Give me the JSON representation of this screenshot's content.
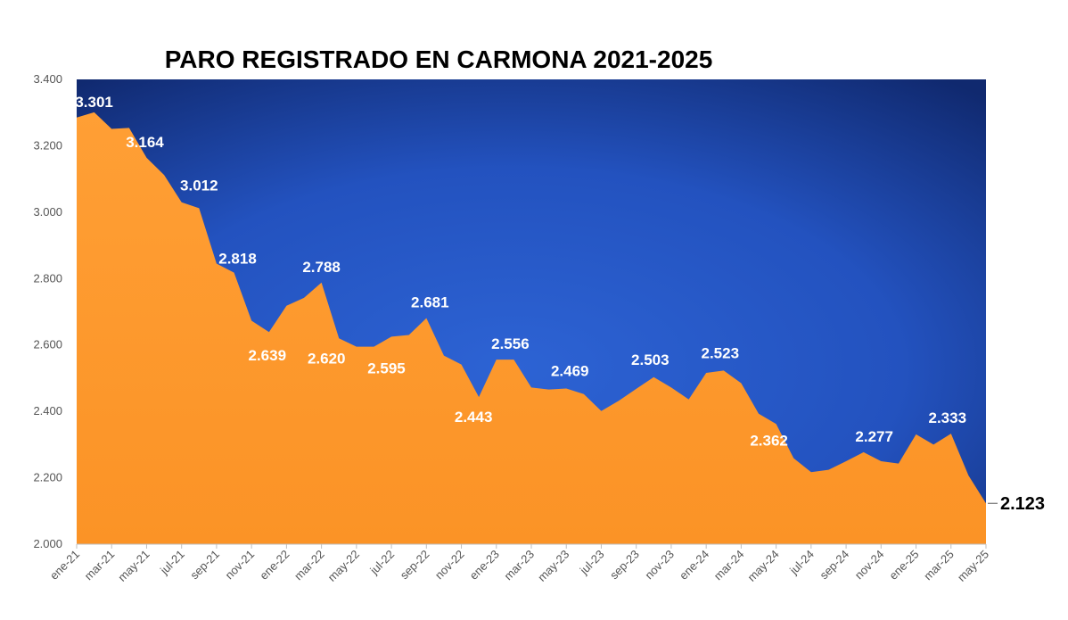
{
  "chart_data": {
    "type": "area",
    "title": "PARO REGISTRADO EN CARMONA 2021-2025",
    "xlabel": "",
    "ylabel": "",
    "ylim": [
      2000,
      3400
    ],
    "yticks": [
      "2.000",
      "2.200",
      "2.400",
      "2.600",
      "2.800",
      "3.000",
      "3.200",
      "3.400"
    ],
    "ytick_values": [
      2000,
      2200,
      2400,
      2600,
      2800,
      3000,
      3200,
      3400
    ],
    "grid": false,
    "legend": "none",
    "x": [
      "ene-21",
      "feb-21",
      "mar-21",
      "abr-21",
      "may-21",
      "jun-21",
      "jul-21",
      "ago-21",
      "sep-21",
      "oct-21",
      "nov-21",
      "dic-21",
      "ene-22",
      "feb-22",
      "mar-22",
      "abr-22",
      "may-22",
      "jun-22",
      "jul-22",
      "ago-22",
      "sep-22",
      "oct-22",
      "nov-22",
      "dic-22",
      "ene-23",
      "feb-23",
      "mar-23",
      "abr-23",
      "may-23",
      "jun-23",
      "jul-23",
      "ago-23",
      "sep-23",
      "oct-23",
      "nov-23",
      "dic-23",
      "ene-24",
      "feb-24",
      "mar-24",
      "abr-24",
      "may-24",
      "jun-24",
      "jul-24",
      "ago-24",
      "sep-24",
      "oct-24",
      "nov-24",
      "dic-24",
      "ene-25",
      "feb-25",
      "mar-25",
      "abr-25",
      "may-25"
    ],
    "x_tick_labels": [
      "ene-21",
      "mar-21",
      "may-21",
      "jul-21",
      "sep-21",
      "nov-21",
      "ene-22",
      "mar-22",
      "may-22",
      "jul-22",
      "sep-22",
      "nov-22",
      "ene-23",
      "mar-23",
      "may-23",
      "jul-23",
      "sep-23",
      "nov-23",
      "ene-24",
      "mar-24",
      "may-24",
      "jul-24",
      "sep-24",
      "nov-24",
      "ene-25",
      "mar-25",
      "may-25"
    ],
    "series": [
      {
        "values": [
          3285,
          3301,
          3251,
          3254,
          3164,
          3112,
          3030,
          3012,
          2845,
          2818,
          2673,
          2639,
          2718,
          2742,
          2788,
          2620,
          2595,
          2595,
          2625,
          2630,
          2681,
          2568,
          2541,
          2443,
          2556,
          2556,
          2472,
          2466,
          2469,
          2452,
          2401,
          2432,
          2468,
          2503,
          2472,
          2436,
          2516,
          2523,
          2485,
          2393,
          2362,
          2259,
          2217,
          2224,
          2250,
          2277,
          2250,
          2243,
          2331,
          2300,
          2333,
          2207,
          2123
        ]
      }
    ],
    "data_labels": [
      {
        "index": 1,
        "text": "3.301"
      },
      {
        "index": 4,
        "text": "3.164"
      },
      {
        "index": 7,
        "text": "3.012"
      },
      {
        "index": 9,
        "text": "2.818"
      },
      {
        "index": 11,
        "text": "2.639"
      },
      {
        "index": 14,
        "text": "2.788"
      },
      {
        "index": 15,
        "text": "2.620"
      },
      {
        "index": 17,
        "text": "2.595"
      },
      {
        "index": 20,
        "text": "2.681"
      },
      {
        "index": 23,
        "text": "2.443"
      },
      {
        "index": 25,
        "text": "2.556"
      },
      {
        "index": 28,
        "text": "2.469"
      },
      {
        "index": 33,
        "text": "2.503"
      },
      {
        "index": 37,
        "text": "2.523"
      },
      {
        "index": 40,
        "text": "2.362"
      },
      {
        "index": 45,
        "text": "2.277"
      },
      {
        "index": 50,
        "text": "2.333"
      },
      {
        "index": 52,
        "text": "2.123"
      }
    ],
    "colors": {
      "area": "#ff9b2f",
      "area_dark": "#f28a1c",
      "background_top": "#0f2a78",
      "background_mid": "#1f4fb8",
      "background_center": "#2a5fd0"
    }
  }
}
